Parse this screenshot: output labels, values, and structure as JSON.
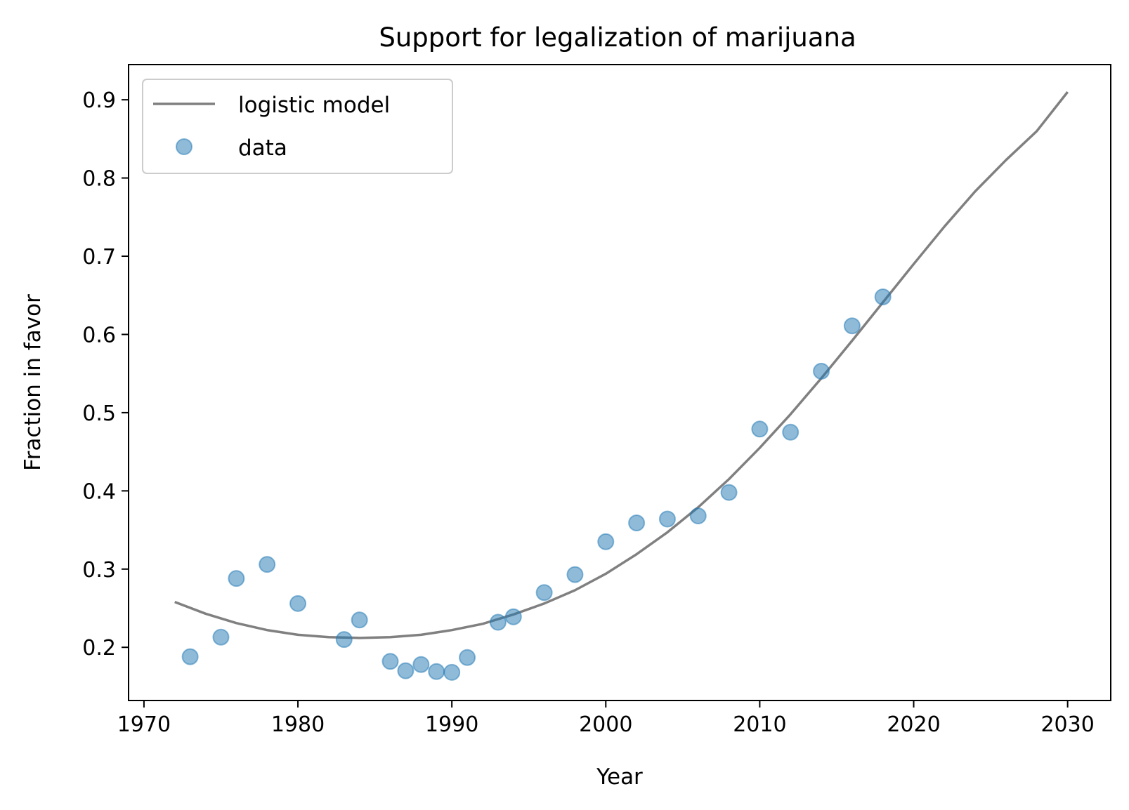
{
  "chart_data": {
    "type": "scatter",
    "title": "Support for legalization of marijuana",
    "xlabel": "Year",
    "ylabel": "Fraction in favor",
    "xlim": [
      1969.0,
      2032.8
    ],
    "ylim": [
      0.132,
      0.945
    ],
    "xticks": [
      1970,
      1980,
      1990,
      2000,
      2010,
      2020,
      2030
    ],
    "yticks": [
      0.2,
      0.3,
      0.4,
      0.5,
      0.6,
      0.7,
      0.8,
      0.9
    ],
    "xtick_labels": [
      "1970",
      "1980",
      "1990",
      "2000",
      "2010",
      "2020",
      "2030"
    ],
    "ytick_labels": [
      "0.2",
      "0.3",
      "0.4",
      "0.5",
      "0.6",
      "0.7",
      "0.8",
      "0.9"
    ],
    "grid": false,
    "legend_position": "top-left",
    "series": [
      {
        "name": "logistic model",
        "kind": "line",
        "color": "#808080",
        "x": [
          1972,
          1974,
          1976,
          1978,
          1980,
          1982,
          1984,
          1986,
          1988,
          1990,
          1992,
          1994,
          1996,
          1998,
          2000,
          2002,
          2004,
          2006,
          2008,
          2010,
          2012,
          2014,
          2016,
          2018,
          2020,
          2022,
          2024,
          2026,
          2028,
          2030
        ],
        "y": [
          0.258,
          0.243,
          0.231,
          0.222,
          0.216,
          0.213,
          0.212,
          0.213,
          0.216,
          0.222,
          0.23,
          0.242,
          0.256,
          0.273,
          0.294,
          0.319,
          0.347,
          0.379,
          0.415,
          0.455,
          0.498,
          0.544,
          0.592,
          0.641,
          0.69,
          0.738,
          0.783,
          0.823,
          0.86,
          0.91
        ]
      },
      {
        "name": "data",
        "kind": "scatter",
        "color": "#1f77b4",
        "x": [
          1973,
          1975,
          1976,
          1978,
          1980,
          1983,
          1984,
          1986,
          1987,
          1988,
          1989,
          1990,
          1991,
          1993,
          1994,
          1996,
          1998,
          2000,
          2002,
          2004,
          2006,
          2008,
          2010,
          2012,
          2014,
          2016,
          2018
        ],
        "y": [
          0.188,
          0.213,
          0.288,
          0.306,
          0.256,
          0.21,
          0.235,
          0.182,
          0.17,
          0.178,
          0.169,
          0.168,
          0.187,
          0.232,
          0.239,
          0.27,
          0.293,
          0.335,
          0.359,
          0.364,
          0.368,
          0.398,
          0.479,
          0.475,
          0.553,
          0.611,
          0.648
        ]
      }
    ]
  }
}
